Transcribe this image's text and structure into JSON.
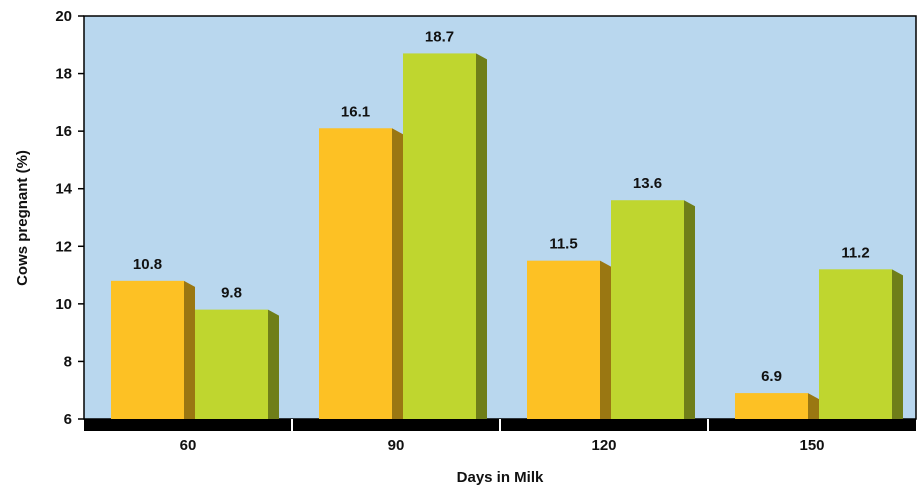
{
  "chart_data": {
    "type": "bar",
    "xlabel": "Days in Milk",
    "ylabel": "Cows pregnant (%)",
    "ylim": [
      6,
      20
    ],
    "yticks": [
      6,
      8,
      10,
      12,
      14,
      16,
      18,
      20
    ],
    "categories": [
      "60",
      "90",
      "120",
      "150"
    ],
    "series": [
      {
        "values": [
          10.8,
          16.1,
          11.5,
          6.9
        ],
        "labels": [
          "10.8",
          "16.1",
          "11.5",
          "6.9"
        ],
        "color": "#FDC124",
        "side_color": "#9A7712"
      },
      {
        "values": [
          9.8,
          18.7,
          13.6,
          11.2
        ],
        "labels": [
          "9.8",
          "18.7",
          "13.6",
          "11.2"
        ],
        "color": "#BFD62F",
        "side_color": "#6F7E19"
      }
    ],
    "plot_background": "#B9D7EE",
    "grid": false
  }
}
